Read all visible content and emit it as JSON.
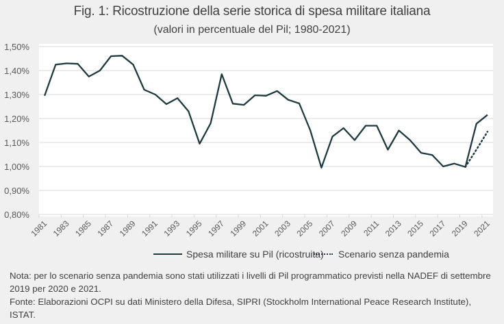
{
  "chart_data": {
    "type": "line",
    "title": "Fig. 1: Ricostruzione della serie storica di spesa militare italiana",
    "subtitle": "(valori in percentuale del Pil; 1980-2021)",
    "xlabel": "",
    "ylabel": "",
    "ylim": [
      0.8,
      1.5
    ],
    "grid": true,
    "legend_position": "bottom",
    "y_ticks": [
      "0,80%",
      "0,90%",
      "1,00%",
      "1,10%",
      "1,20%",
      "1,30%",
      "1,40%",
      "1,50%"
    ],
    "x_tick_labels": [
      "1981",
      "1983",
      "1985",
      "1987",
      "1989",
      "1991",
      "1993",
      "1995",
      "1997",
      "1999",
      "2001",
      "2003",
      "2005",
      "2007",
      "2009",
      "2011",
      "2013",
      "2015",
      "2017",
      "2019",
      "2021"
    ],
    "categories": [
      1981,
      1982,
      1983,
      1984,
      1985,
      1986,
      1987,
      1988,
      1989,
      1990,
      1991,
      1992,
      1993,
      1994,
      1995,
      1996,
      1997,
      1998,
      1999,
      2000,
      2001,
      2002,
      2003,
      2004,
      2005,
      2006,
      2007,
      2008,
      2009,
      2010,
      2011,
      2012,
      2013,
      2014,
      2015,
      2016,
      2017,
      2018,
      2019,
      2020,
      2021
    ],
    "series": [
      {
        "name": "Spesa militare su Pil (ricostruita)",
        "style": "solid",
        "color": "#1e3a40",
        "values": [
          1.295,
          1.425,
          1.43,
          1.428,
          1.375,
          1.4,
          1.46,
          1.462,
          1.425,
          1.32,
          1.3,
          1.26,
          1.285,
          1.23,
          1.095,
          1.18,
          1.385,
          1.262,
          1.257,
          1.297,
          1.295,
          1.315,
          1.278,
          1.263,
          1.15,
          0.995,
          1.125,
          1.16,
          1.11,
          1.17,
          1.17,
          1.07,
          1.15,
          1.11,
          1.057,
          1.048,
          1.0,
          1.012,
          0.998,
          1.178,
          1.215
        ]
      },
      {
        "name": "Scenario senza pandemia",
        "style": "dotted",
        "color": "#1e3a40",
        "x": [
          2019,
          2020,
          2021
        ],
        "values": [
          0.998,
          1.07,
          1.145
        ]
      }
    ]
  },
  "notes": {
    "nota": "Nota: per lo scenario senza pandemia sono stati utilizzati i livelli di Pil programmatico previsti nella NADEF di settembre 2019 per 2020 e 2021.",
    "fonte": "Fonte: Elaborazioni OCPI su dati Ministero della Difesa, SIPRI (Stockholm International Peace Research Institute), ISTAT."
  }
}
